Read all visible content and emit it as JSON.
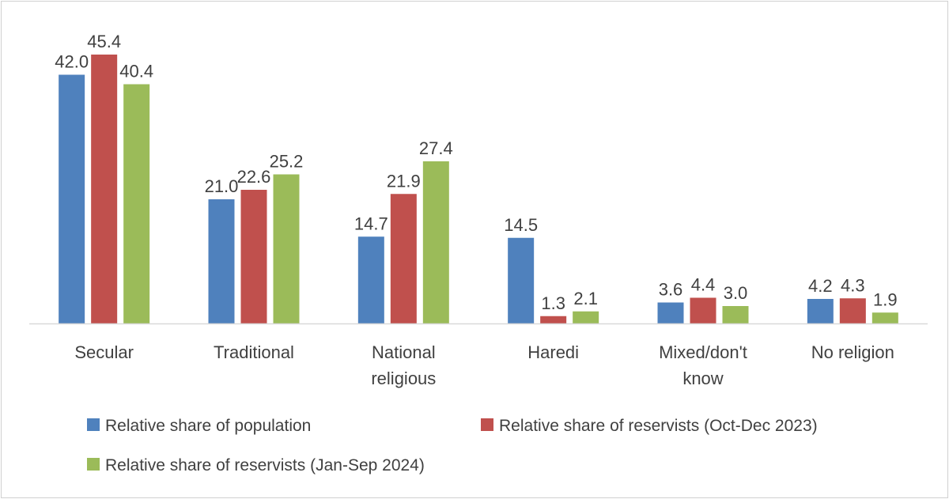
{
  "chart_data": {
    "type": "bar",
    "title": "",
    "xlabel": "",
    "ylabel": "",
    "ylim": [
      0,
      46
    ],
    "grid": false,
    "legend_position": "bottom",
    "categories": [
      [
        "Secular"
      ],
      [
        "Traditional"
      ],
      [
        "National",
        "religious"
      ],
      [
        "Haredi"
      ],
      [
        "Mixed/don't",
        "know"
      ],
      [
        "No religion"
      ]
    ],
    "series": [
      {
        "name": "Relative share of population",
        "color": "#4f81bd",
        "values": [
          42.0,
          21.0,
          14.7,
          14.5,
          3.6,
          4.2
        ]
      },
      {
        "name": "Relative share of reservists (Oct-Dec 2023)",
        "color": "#c0504d",
        "values": [
          45.4,
          22.6,
          21.9,
          1.3,
          4.4,
          4.3
        ]
      },
      {
        "name": "Relative share of reservists (Jan-Sep 2024)",
        "color": "#9bbb59",
        "values": [
          40.4,
          25.2,
          27.4,
          2.1,
          3.0,
          1.9
        ]
      }
    ],
    "value_format": "0.0"
  }
}
